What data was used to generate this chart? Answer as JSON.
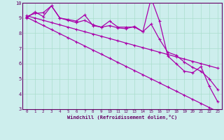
{
  "x": [
    0,
    1,
    2,
    3,
    4,
    5,
    6,
    7,
    8,
    9,
    10,
    11,
    12,
    13,
    14,
    15,
    16,
    17,
    18,
    19,
    20,
    21,
    22,
    23
  ],
  "line1": [
    9.1,
    9.3,
    9.35,
    9.8,
    9.0,
    8.9,
    8.8,
    9.2,
    8.5,
    8.4,
    8.8,
    8.4,
    8.4,
    8.4,
    8.1,
    10.3,
    8.8,
    6.5,
    6.0,
    5.5,
    5.4,
    5.8,
    4.5,
    3.5
  ],
  "line2": [
    9.0,
    9.4,
    9.1,
    9.8,
    9.0,
    8.85,
    8.7,
    8.85,
    8.55,
    8.4,
    8.5,
    8.35,
    8.3,
    8.45,
    8.1,
    8.6,
    7.6,
    6.75,
    6.55,
    6.1,
    5.75,
    5.5,
    5.0,
    4.3
  ],
  "reg1": [
    9.15,
    9.0,
    8.85,
    8.7,
    8.55,
    8.4,
    8.25,
    8.1,
    7.95,
    7.8,
    7.65,
    7.5,
    7.35,
    7.2,
    7.05,
    6.9,
    6.75,
    6.6,
    6.45,
    6.3,
    6.15,
    6.0,
    5.85,
    5.7
  ],
  "reg2": [
    9.05,
    8.78,
    8.51,
    8.24,
    7.97,
    7.7,
    7.43,
    7.16,
    6.89,
    6.62,
    6.35,
    6.08,
    5.81,
    5.54,
    5.27,
    5.0,
    4.73,
    4.46,
    4.19,
    3.92,
    3.65,
    3.38,
    3.11,
    2.84
  ],
  "bg_color": "#cdeeed",
  "line_color": "#aa00aa",
  "grid_color": "#aaddcc",
  "axis_color": "#660066",
  "xlabel": "Windchill (Refroidissement éolien,°C)",
  "ylim": [
    3,
    10
  ],
  "xlim": [
    -0.5,
    23.5
  ],
  "yticks": [
    3,
    4,
    5,
    6,
    7,
    8,
    9,
    10
  ],
  "xticks": [
    0,
    1,
    2,
    3,
    4,
    5,
    6,
    7,
    8,
    9,
    10,
    11,
    12,
    13,
    14,
    15,
    16,
    17,
    18,
    19,
    20,
    21,
    22,
    23
  ]
}
